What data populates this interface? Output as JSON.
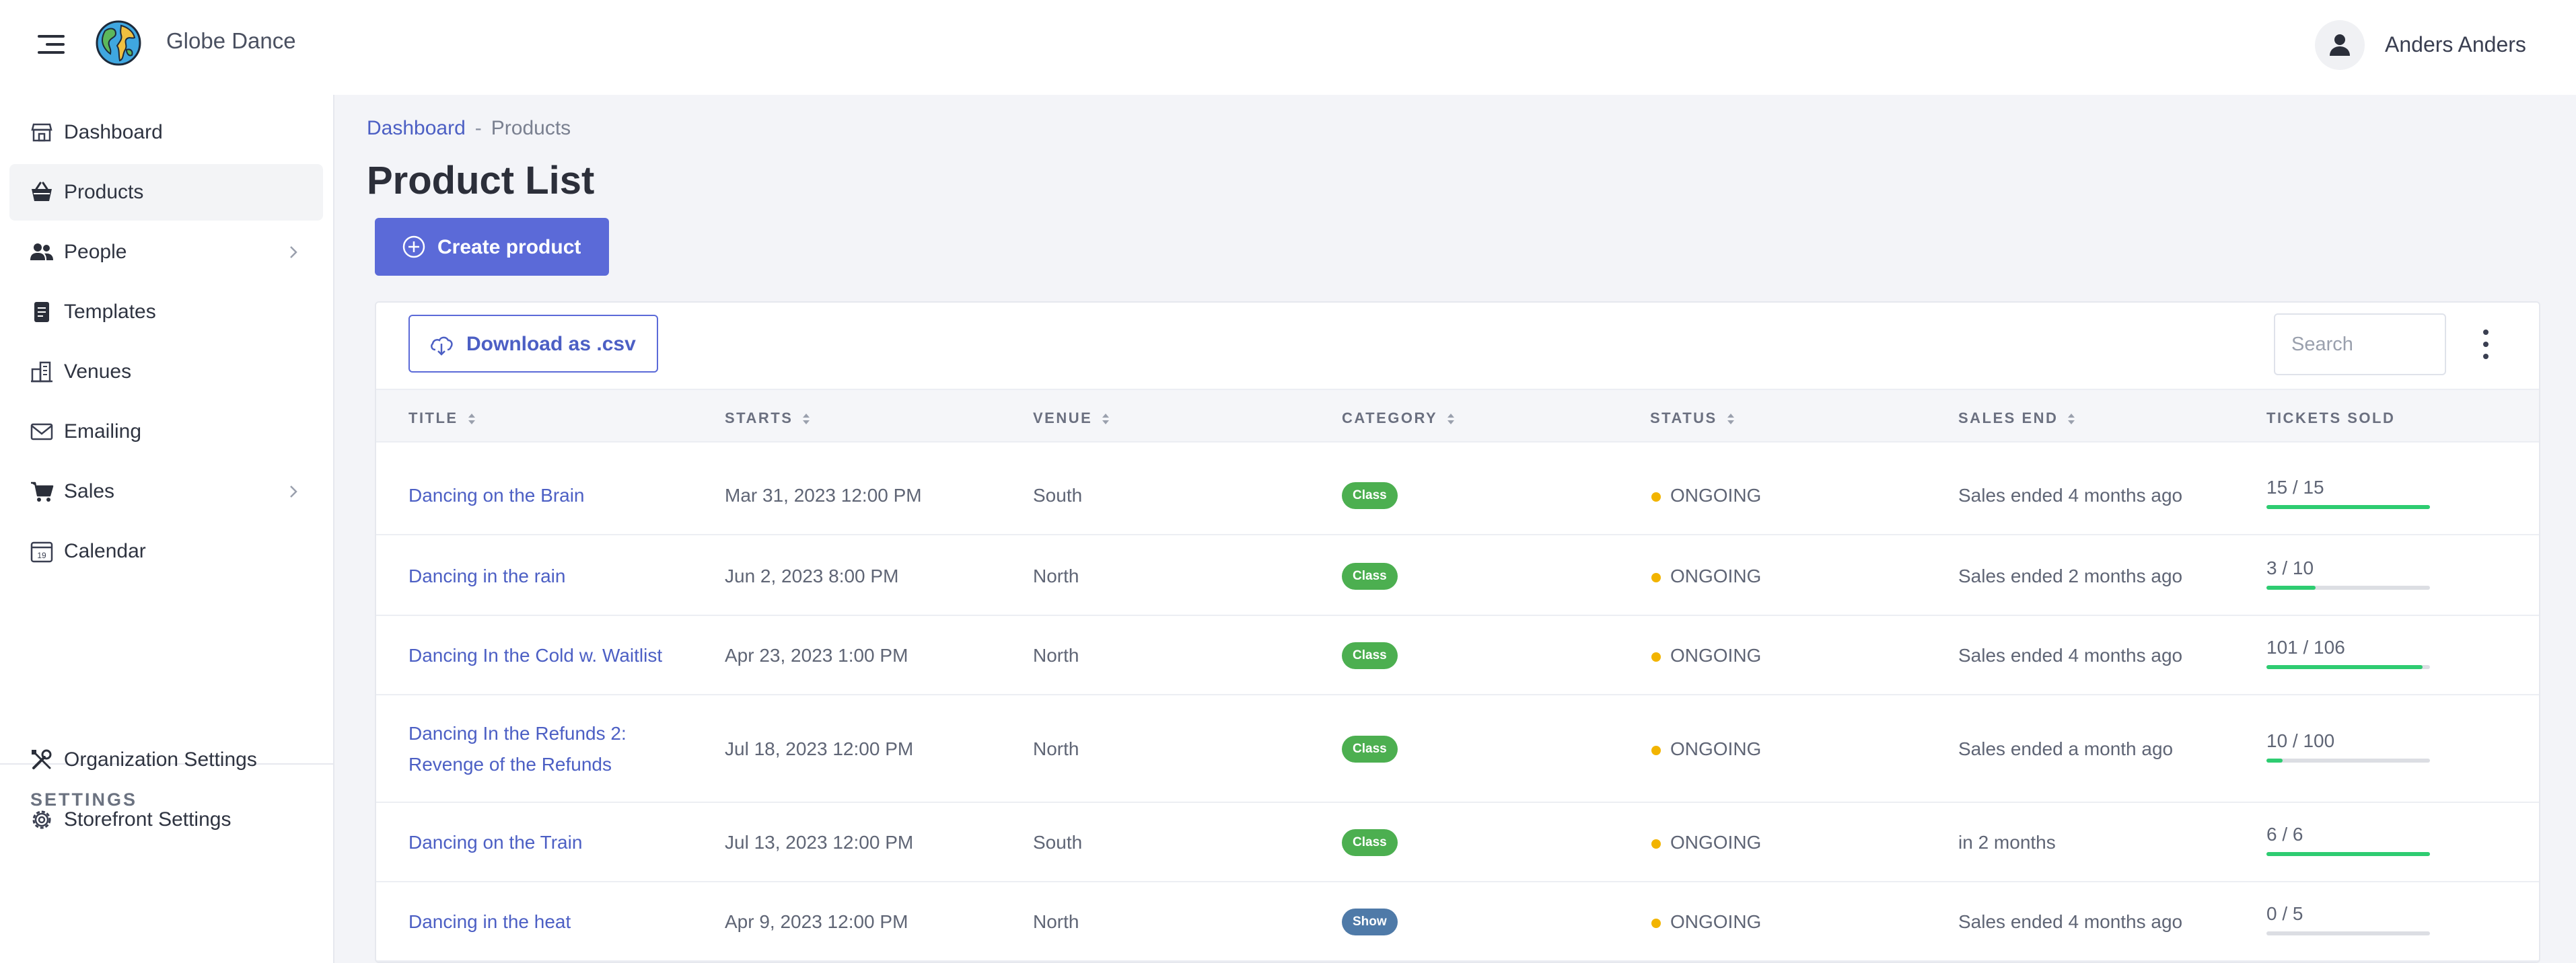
{
  "header": {
    "brand": "Globe Dance",
    "user_name": "Anders Anders"
  },
  "sidebar": {
    "items": [
      {
        "label": "Dashboard",
        "icon": "dashboard-icon"
      },
      {
        "label": "Products",
        "icon": "basket-icon",
        "active": true
      },
      {
        "label": "People",
        "icon": "people-icon",
        "has_children": true
      },
      {
        "label": "Templates",
        "icon": "template-icon"
      },
      {
        "label": "Venues",
        "icon": "building-icon"
      },
      {
        "label": "Emailing",
        "icon": "envelope-icon"
      },
      {
        "label": "Sales",
        "icon": "cart-icon",
        "has_children": true
      },
      {
        "label": "Calendar",
        "icon": "calendar-icon",
        "calendar_day": "19"
      }
    ],
    "settings_heading": "SETTINGS",
    "settings_items": [
      {
        "label": "Organization Settings",
        "icon": "tools-icon"
      },
      {
        "label": "Storefront Settings",
        "icon": "gear-icon"
      }
    ]
  },
  "breadcrumb": {
    "root": "Dashboard",
    "separator": "-",
    "current": "Products"
  },
  "page_title": "Product List",
  "create_button": "Create product",
  "toolbar": {
    "download_label": "Download as .csv",
    "search_placeholder": "Search"
  },
  "table": {
    "columns": [
      "TITLE",
      "STARTS",
      "VENUE",
      "CATEGORY",
      "STATUS",
      "SALES END",
      "TICKETS SOLD"
    ],
    "rows": [
      {
        "title": [
          "Dancing on the Brain"
        ],
        "starts": "Mar 31, 2023 12:00 PM",
        "venue": "South",
        "category": "Class",
        "status": "ONGOING",
        "sales_end": "Sales ended 4 months ago",
        "tickets": "15 / 15",
        "sold": 15,
        "capacity": 15
      },
      {
        "title": [
          "Dancing in the rain"
        ],
        "starts": "Jun 2, 2023 8:00 PM",
        "venue": "North",
        "category": "Class",
        "status": "ONGOING",
        "sales_end": "Sales ended 2 months ago",
        "tickets": "3 / 10",
        "sold": 3,
        "capacity": 10
      },
      {
        "title": [
          "Dancing In the Cold w. Waitlist"
        ],
        "starts": "Apr 23, 2023 1:00 PM",
        "venue": "North",
        "category": "Class",
        "status": "ONGOING",
        "sales_end": "Sales ended 4 months ago",
        "tickets": "101 / 106",
        "sold": 101,
        "capacity": 106
      },
      {
        "title": [
          "Dancing In the Refunds 2:",
          "Revenge of the Refunds"
        ],
        "starts": "Jul 18, 2023 12:00 PM",
        "venue": "North",
        "category": "Class",
        "status": "ONGOING",
        "sales_end": "Sales ended a month ago",
        "tickets": "10 / 100",
        "sold": 10,
        "capacity": 100
      },
      {
        "title": [
          "Dancing on the Train"
        ],
        "starts": "Jul 13, 2023 12:00 PM",
        "venue": "South",
        "category": "Class",
        "status": "ONGOING",
        "sales_end": "in 2 months",
        "tickets": "6 / 6",
        "sold": 6,
        "capacity": 6
      },
      {
        "title": [
          "Dancing in the heat"
        ],
        "starts": "Apr 9, 2023 12:00 PM",
        "venue": "North",
        "category": "Show",
        "status": "ONGOING",
        "sales_end": "Sales ended 4 months ago",
        "tickets": "0 / 5",
        "sold": 0,
        "capacity": 5
      }
    ]
  },
  "colors": {
    "accent": "#5b6ad8",
    "link": "#4c5fc4",
    "class_badge": "#4caf50",
    "show_badge": "#4f7aa8",
    "status_dot": "#f2b400",
    "progress": "#2ecc71"
  }
}
